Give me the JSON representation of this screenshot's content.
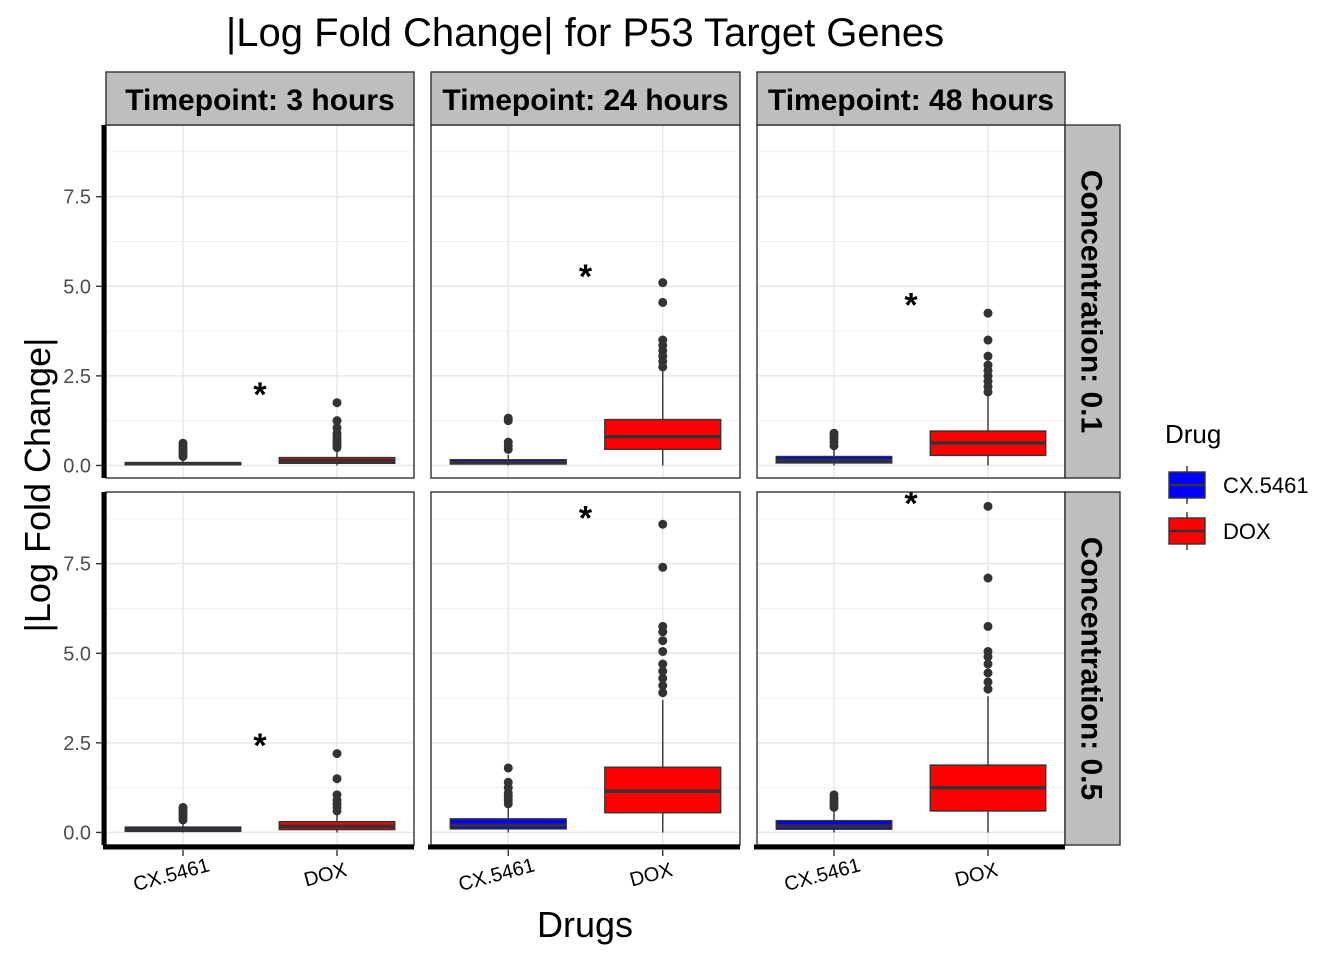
{
  "chart_data": {
    "type": "box",
    "title": "|Log Fold Change| for P53 Target Genes",
    "xlabel": "Drugs",
    "ylabel": "|Log Fold Change|",
    "ylim": [
      -0.35,
      9.5
    ],
    "y_ticks": [
      0.0,
      2.5,
      5.0,
      7.5
    ],
    "y_tick_labels": [
      "0.0",
      "2.5",
      "5.0",
      "7.5"
    ],
    "categories": [
      "CX.5461",
      "DOX"
    ],
    "column_facet_labels": [
      "Timepoint: 3 hours",
      "Timepoint: 24 hours",
      "Timepoint: 48 hours"
    ],
    "row_facet_labels": [
      "Concentration: 0.1",
      "Concentration: 0.5"
    ],
    "grid": true,
    "legend": {
      "title": "Drug",
      "position": "right",
      "entries": [
        {
          "label": "CX.5461",
          "color": "#0000ff"
        },
        {
          "label": "DOX",
          "color": "#ff0000"
        }
      ]
    },
    "colors": {
      "CX.5461": "#0000ff",
      "DOX": "#ff0000",
      "median": "#333333",
      "outlier": "#333333",
      "strip": "#bebebe"
    },
    "significance_marker": "*",
    "panels": [
      {
        "row": 0,
        "col": 0,
        "star_y": 2.1,
        "boxes": [
          {
            "drug": "CX.5461",
            "q1": 0.02,
            "median": 0.05,
            "q3": 0.08,
            "whisker_low": 0.0,
            "whisker_high": 0.15,
            "outliers": [
              0.25,
              0.32,
              0.4,
              0.47,
              0.55,
              0.62
            ]
          },
          {
            "drug": "DOX",
            "q1": 0.06,
            "median": 0.13,
            "q3": 0.22,
            "whisker_low": 0.0,
            "whisker_high": 0.45,
            "outliers": [
              0.5,
              0.58,
              0.65,
              0.72,
              0.8,
              0.9,
              1.05,
              1.25,
              1.75
            ]
          }
        ]
      },
      {
        "row": 0,
        "col": 1,
        "star_y": 5.4,
        "boxes": [
          {
            "drug": "CX.5461",
            "q1": 0.04,
            "median": 0.08,
            "q3": 0.16,
            "whisker_low": 0.0,
            "whisker_high": 0.3,
            "outliers": [
              0.45,
              0.55,
              0.65,
              1.25,
              1.32
            ]
          },
          {
            "drug": "DOX",
            "q1": 0.45,
            "median": 0.8,
            "q3": 1.28,
            "whisker_low": 0.0,
            "whisker_high": 2.65,
            "outliers": [
              2.75,
              2.9,
              3.05,
              3.2,
              3.35,
              3.5,
              4.55,
              5.1
            ]
          }
        ]
      },
      {
        "row": 0,
        "col": 2,
        "star_y": 4.6,
        "boxes": [
          {
            "drug": "CX.5461",
            "q1": 0.07,
            "median": 0.14,
            "q3": 0.25,
            "whisker_low": 0.0,
            "whisker_high": 0.5,
            "outliers": [
              0.55,
              0.65,
              0.75,
              0.85,
              0.9
            ]
          },
          {
            "drug": "DOX",
            "q1": 0.28,
            "median": 0.63,
            "q3": 0.96,
            "whisker_low": 0.0,
            "whisker_high": 1.95,
            "outliers": [
              2.05,
              2.2,
              2.35,
              2.5,
              2.65,
              2.8,
              3.05,
              3.5,
              4.25
            ]
          }
        ]
      },
      {
        "row": 1,
        "col": 0,
        "star_y": 2.55,
        "boxes": [
          {
            "drug": "CX.5461",
            "q1": 0.03,
            "median": 0.08,
            "q3": 0.15,
            "whisker_low": 0.0,
            "whisker_high": 0.3,
            "outliers": [
              0.35,
              0.42,
              0.5,
              0.58,
              0.65,
              0.7
            ]
          },
          {
            "drug": "DOX",
            "q1": 0.08,
            "median": 0.17,
            "q3": 0.3,
            "whisker_low": 0.0,
            "whisker_high": 0.55,
            "outliers": [
              0.6,
              0.7,
              0.8,
              0.9,
              1.05,
              1.5,
              2.2
            ]
          }
        ]
      },
      {
        "row": 1,
        "col": 1,
        "star_y": 8.9,
        "boxes": [
          {
            "drug": "CX.5461",
            "q1": 0.1,
            "median": 0.2,
            "q3": 0.38,
            "whisker_low": 0.0,
            "whisker_high": 0.75,
            "outliers": [
              0.8,
              0.9,
              1.0,
              1.1,
              1.25,
              1.4,
              1.8
            ]
          },
          {
            "drug": "DOX",
            "q1": 0.55,
            "median": 1.15,
            "q3": 1.82,
            "whisker_low": 0.0,
            "whisker_high": 3.7,
            "outliers": [
              3.9,
              4.1,
              4.3,
              4.5,
              4.7,
              5.05,
              5.35,
              5.6,
              5.75,
              7.4,
              8.6
            ]
          }
        ]
      },
      {
        "row": 1,
        "col": 2,
        "star_y": 9.3,
        "boxes": [
          {
            "drug": "CX.5461",
            "q1": 0.09,
            "median": 0.18,
            "q3": 0.33,
            "whisker_low": 0.0,
            "whisker_high": 0.65,
            "outliers": [
              0.7,
              0.78,
              0.86,
              0.95,
              1.05
            ]
          },
          {
            "drug": "DOX",
            "q1": 0.6,
            "median": 1.25,
            "q3": 1.88,
            "whisker_low": 0.0,
            "whisker_high": 3.8,
            "outliers": [
              4.0,
              4.2,
              4.45,
              4.7,
              4.9,
              5.05,
              5.75,
              7.1,
              9.1
            ]
          }
        ]
      }
    ]
  }
}
